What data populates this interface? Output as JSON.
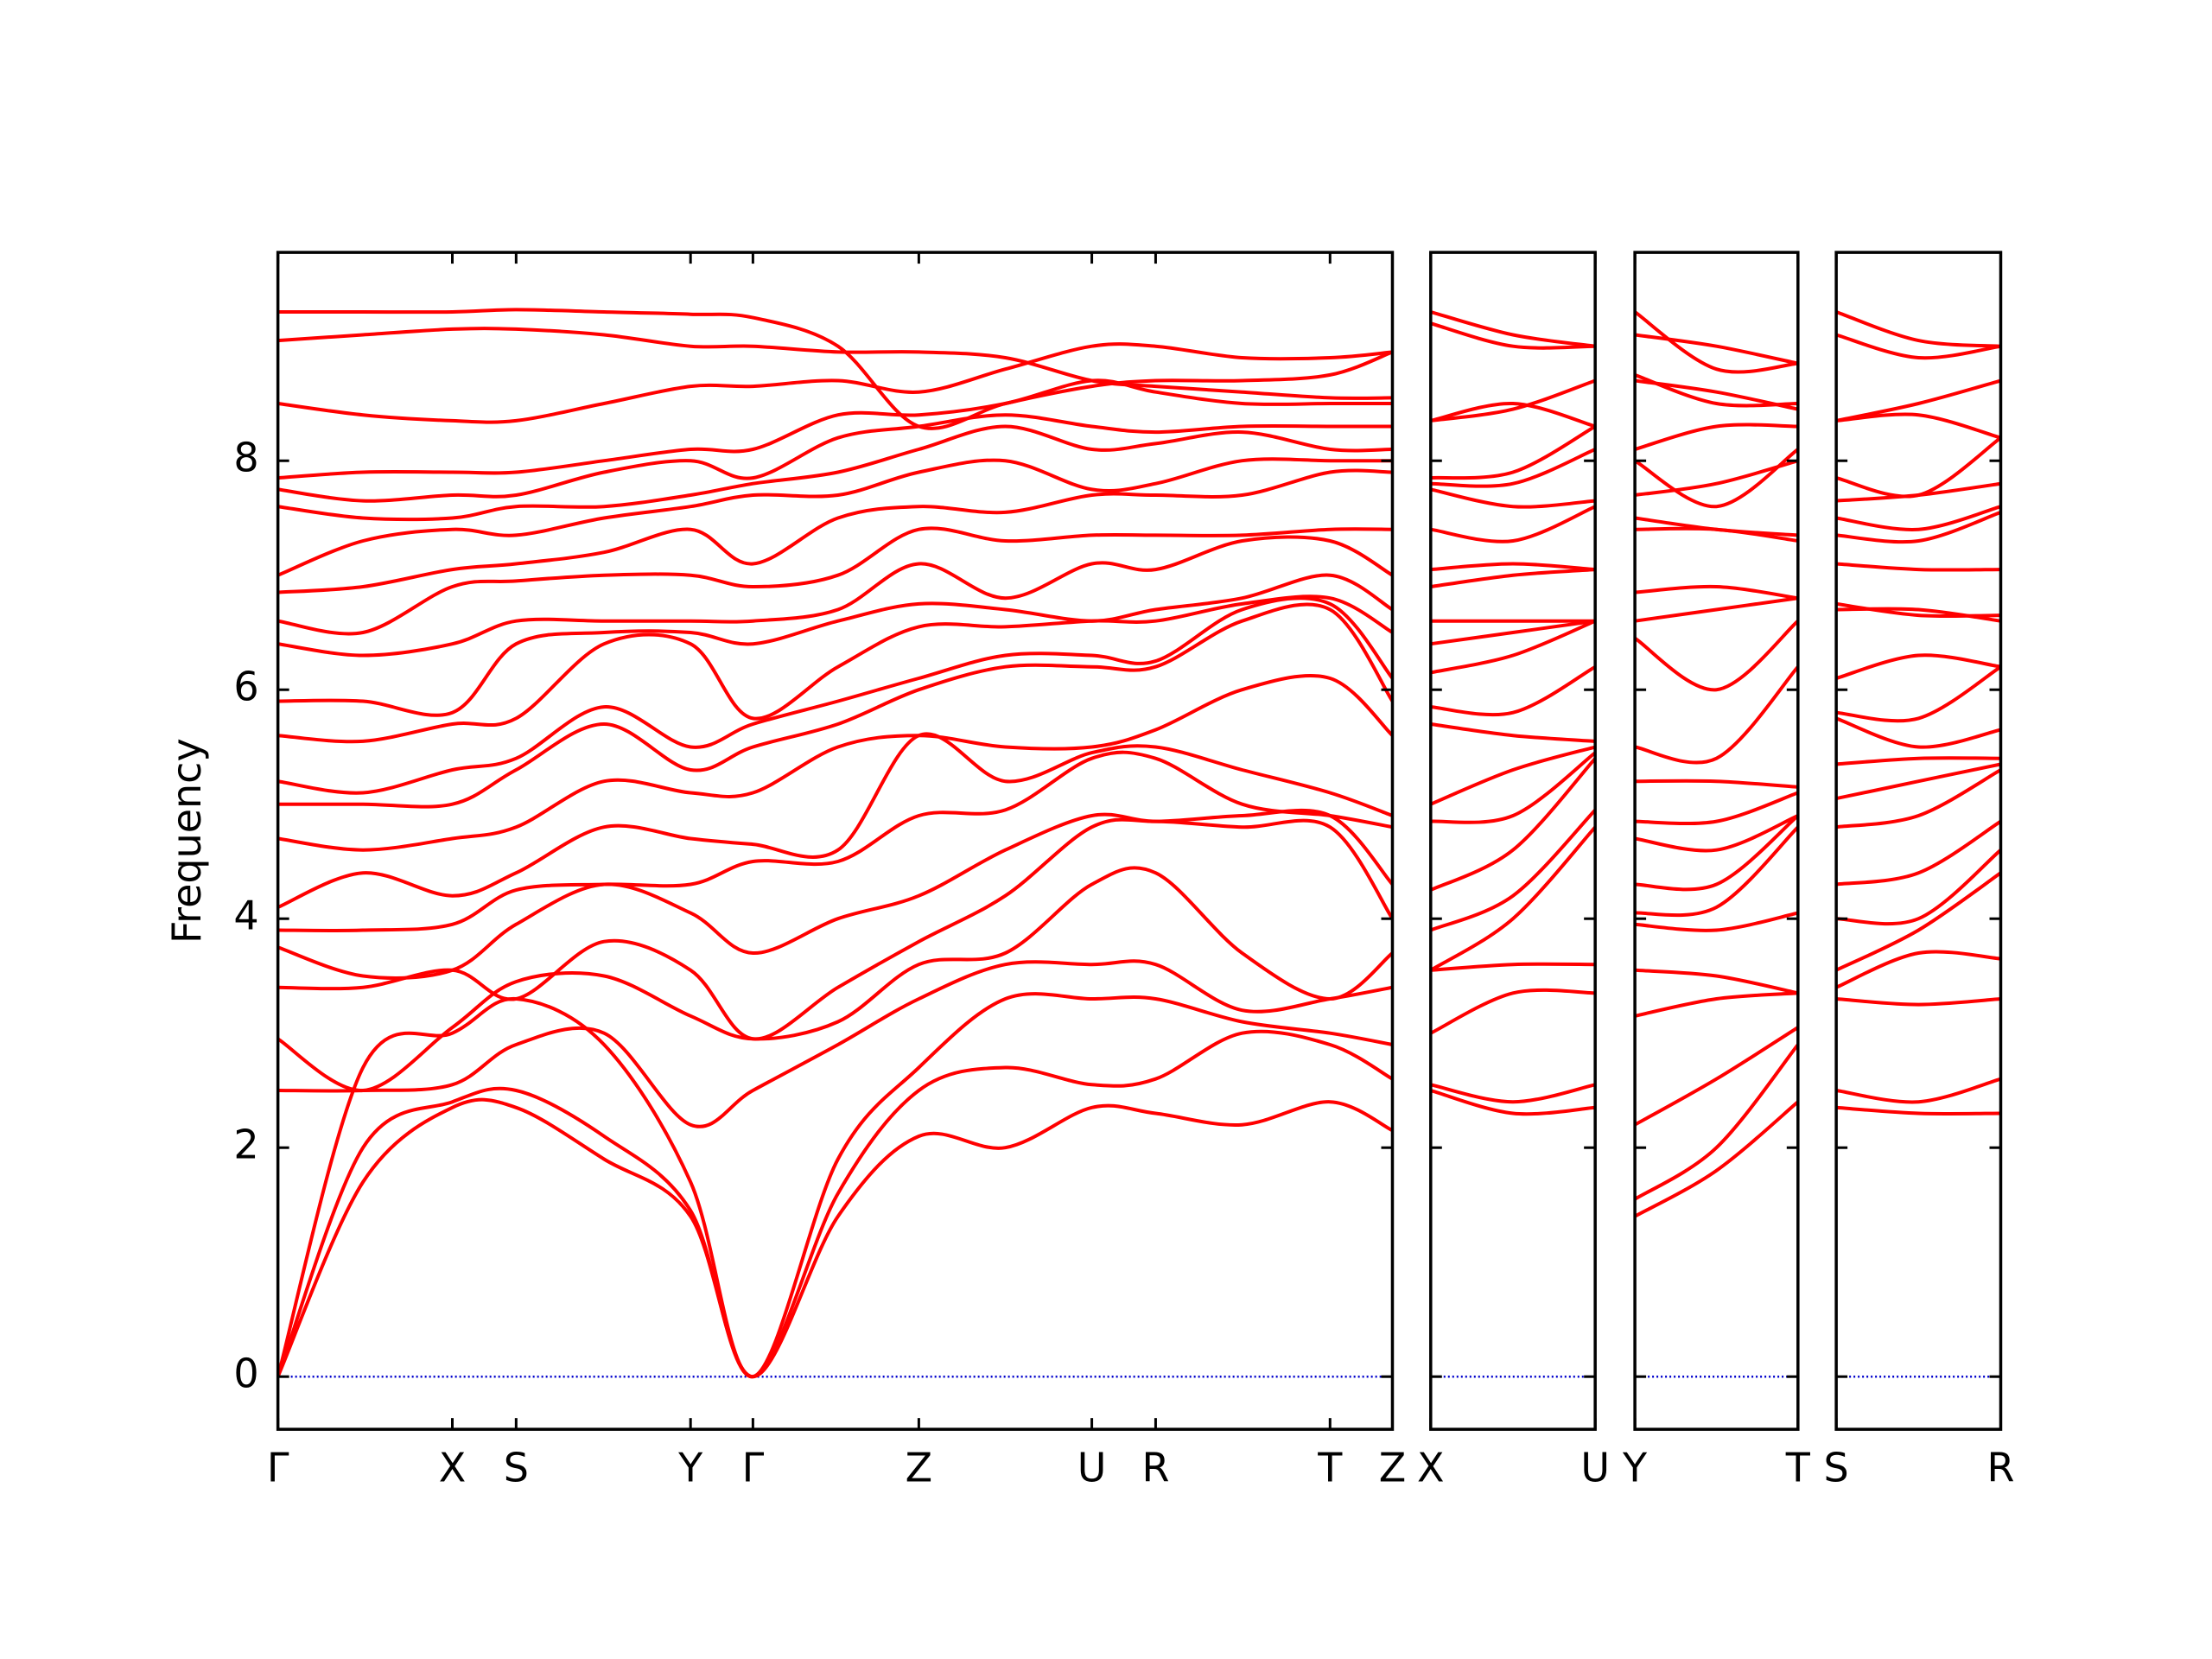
{
  "chart_data": [
    {
      "type": "line",
      "ylabel": "Frequency",
      "color": "#ff0000",
      "hline": 0,
      "hline_color": "#0000cc",
      "xlim": [
        0,
        7.86
      ],
      "xticks": [
        {
          "value": 0,
          "label": "Γ"
        },
        {
          "value": 1.23,
          "label": "X"
        },
        {
          "value": 1.68,
          "label": "S"
        },
        {
          "value": 2.91,
          "label": "Y"
        },
        {
          "value": 3.35,
          "label": "Γ"
        },
        {
          "value": 4.52,
          "label": "Z"
        },
        {
          "value": 5.74,
          "label": "U"
        },
        {
          "value": 6.19,
          "label": "R"
        },
        {
          "value": 7.42,
          "label": "T"
        },
        {
          "value": 7.86,
          "label": "Z"
        }
      ],
      "ylim": [
        -0.46,
        9.82
      ],
      "yticks": [
        0,
        2,
        4,
        6,
        8
      ],
      "show_ytick_labels": true,
      "x": [
        0,
        0.6,
        1.23,
        1.68,
        2.3,
        2.91,
        3.35,
        3.95,
        4.52,
        5.13,
        5.74,
        6.19,
        6.8,
        7.42,
        7.86
      ],
      "series": [
        {
          "values": [
            0,
            1.7,
            2.35,
            2.35,
            1.9,
            1.4,
            0,
            1.4,
            2.1,
            2.0,
            2.35,
            2.3,
            2.2,
            2.4,
            2.15
          ]
        },
        {
          "values": [
            0,
            2.0,
            2.4,
            2.5,
            2.1,
            1.45,
            0,
            1.6,
            2.5,
            2.7,
            2.55,
            2.6,
            3.0,
            2.9,
            2.6
          ]
        },
        {
          "values": [
            0,
            2.7,
            3.0,
            3.3,
            2.9,
            1.7,
            0,
            1.9,
            2.7,
            3.3,
            3.3,
            3.3,
            3.1,
            3.0,
            2.9
          ]
        },
        {
          "values": [
            2.5,
            2.5,
            2.55,
            2.9,
            3.0,
            2.2,
            2.5,
            2.9,
            3.3,
            3.6,
            3.6,
            3.6,
            3.2,
            3.3,
            3.4
          ]
        },
        {
          "values": [
            2.95,
            2.5,
            3.05,
            3.45,
            3.5,
            3.15,
            2.95,
            3.1,
            3.6,
            3.7,
            4.3,
            4.4,
            3.7,
            3.3,
            3.7
          ]
        },
        {
          "values": [
            3.4,
            3.4,
            3.55,
            3.3,
            3.8,
            3.55,
            2.95,
            3.4,
            3.8,
            4.2,
            4.8,
            4.85,
            4.8,
            4.8,
            4.0
          ]
        },
        {
          "values": [
            3.75,
            3.5,
            3.55,
            3.95,
            4.3,
            4.05,
            3.7,
            4.0,
            4.2,
            4.6,
            4.9,
            4.85,
            4.9,
            4.9,
            4.3
          ]
        },
        {
          "values": [
            3.9,
            3.9,
            3.95,
            4.25,
            4.3,
            4.3,
            4.5,
            4.5,
            4.9,
            4.95,
            5.4,
            5.4,
            5.0,
            4.9,
            4.8
          ]
        },
        {
          "values": [
            4.1,
            4.4,
            4.2,
            4.4,
            4.8,
            4.7,
            4.65,
            4.6,
            5.6,
            5.2,
            5.45,
            5.5,
            5.3,
            5.1,
            4.9
          ]
        },
        {
          "values": [
            4.7,
            4.6,
            4.7,
            4.8,
            5.2,
            5.1,
            5.1,
            5.5,
            5.6,
            5.5,
            5.5,
            5.65,
            6.0,
            6.1,
            5.6
          ]
        },
        {
          "values": [
            5.0,
            5.0,
            5.0,
            5.3,
            5.7,
            5.3,
            5.5,
            5.7,
            6.0,
            6.2,
            6.2,
            6.2,
            6.6,
            6.7,
            5.9
          ]
        },
        {
          "values": [
            5.2,
            5.1,
            5.3,
            5.4,
            5.85,
            5.5,
            5.7,
            5.9,
            6.1,
            6.3,
            6.3,
            6.25,
            6.7,
            6.75,
            6.1
          ]
        },
        {
          "values": [
            5.6,
            5.55,
            5.7,
            5.75,
            6.4,
            6.4,
            5.75,
            6.2,
            6.55,
            6.55,
            6.6,
            6.6,
            6.75,
            6.8,
            6.5
          ]
        },
        {
          "values": [
            5.9,
            5.9,
            5.8,
            6.4,
            6.5,
            6.5,
            6.4,
            6.6,
            6.75,
            6.7,
            6.6,
            6.7,
            6.8,
            7.0,
            6.7
          ]
        },
        {
          "values": [
            6.4,
            6.3,
            6.4,
            6.6,
            6.6,
            6.6,
            6.6,
            6.7,
            7.1,
            6.8,
            7.1,
            7.05,
            7.3,
            7.3,
            7.0
          ]
        },
        {
          "values": [
            6.6,
            6.5,
            6.9,
            6.95,
            7.0,
            7.0,
            6.9,
            7.0,
            7.4,
            7.3,
            7.35,
            7.35,
            7.35,
            7.4,
            7.4
          ]
        },
        {
          "values": [
            6.85,
            6.9,
            7.05,
            7.1,
            7.2,
            7.4,
            7.1,
            7.5,
            7.6,
            7.55,
            7.7,
            7.7,
            7.7,
            7.9,
            7.9
          ]
        },
        {
          "values": [
            7.0,
            7.3,
            7.4,
            7.35,
            7.5,
            7.6,
            7.7,
            7.7,
            7.9,
            8.0,
            7.75,
            7.8,
            8.0,
            8.0,
            8.0
          ]
        },
        {
          "values": [
            7.6,
            7.5,
            7.5,
            7.6,
            7.6,
            7.7,
            7.8,
            7.9,
            8.1,
            8.3,
            8.1,
            8.15,
            8.25,
            8.1,
            8.1
          ]
        },
        {
          "values": [
            7.75,
            7.65,
            7.7,
            7.7,
            7.9,
            8.0,
            7.85,
            8.2,
            8.3,
            8.4,
            8.3,
            8.25,
            8.3,
            8.3,
            8.3
          ]
        },
        {
          "values": [
            7.85,
            7.9,
            7.9,
            7.9,
            8.0,
            8.1,
            8.1,
            8.4,
            8.4,
            8.5,
            8.7,
            8.6,
            8.5,
            8.5,
            8.5
          ]
        },
        {
          "values": [
            8.5,
            8.4,
            8.35,
            8.35,
            8.5,
            8.65,
            8.65,
            8.7,
            8.6,
            8.8,
            9.0,
            9.0,
            8.9,
            8.9,
            8.95
          ]
        },
        {
          "values": [
            9.05,
            9.1,
            9.15,
            9.15,
            9.1,
            9.0,
            9.0,
            8.95,
            8.95,
            8.9,
            8.7,
            8.65,
            8.6,
            8.55,
            8.55
          ]
        },
        {
          "values": [
            9.3,
            9.3,
            9.3,
            9.32,
            9.3,
            9.28,
            9.25,
            9.0,
            8.3,
            8.5,
            8.65,
            8.7,
            8.7,
            8.75,
            8.95
          ]
        }
      ]
    },
    {
      "type": "line",
      "color": "#ff0000",
      "hline": 0,
      "hline_color": "#0000cc",
      "xlim": [
        0,
        1.16
      ],
      "xticks": [
        {
          "value": 0,
          "label": "X"
        },
        {
          "value": 1.16,
          "label": "U"
        }
      ],
      "ylim": [
        -0.46,
        9.82
      ],
      "yticks": [
        0,
        2,
        4,
        6,
        8
      ],
      "show_ytick_labels": false,
      "x": [
        0,
        0.58,
        1.16
      ],
      "series": [
        {
          "values": [
            2.5,
            2.3,
            2.35
          ]
        },
        {
          "values": [
            2.55,
            2.4,
            2.55
          ]
        },
        {
          "values": [
            3.0,
            3.35,
            3.35
          ]
        },
        {
          "values": [
            3.55,
            3.6,
            3.6
          ]
        },
        {
          "values": [
            3.55,
            4.0,
            4.8
          ]
        },
        {
          "values": [
            3.9,
            4.2,
            4.95
          ]
        },
        {
          "values": [
            4.25,
            4.6,
            5.4
          ]
        },
        {
          "values": [
            4.85,
            4.9,
            5.45
          ]
        },
        {
          "values": [
            5.0,
            5.3,
            5.5
          ]
        },
        {
          "values": [
            5.7,
            5.6,
            5.55
          ]
        },
        {
          "values": [
            5.85,
            5.8,
            6.2
          ]
        },
        {
          "values": [
            6.15,
            6.3,
            6.6
          ]
        },
        {
          "values": [
            6.4,
            6.5,
            6.6
          ]
        },
        {
          "values": [
            6.6,
            6.6,
            6.6
          ]
        },
        {
          "values": [
            6.9,
            7.0,
            7.05
          ]
        },
        {
          "values": [
            7.05,
            7.1,
            7.05
          ]
        },
        {
          "values": [
            7.4,
            7.3,
            7.6
          ]
        },
        {
          "values": [
            7.75,
            7.6,
            7.65
          ]
        },
        {
          "values": [
            7.8,
            7.8,
            8.1
          ]
        },
        {
          "values": [
            7.85,
            7.9,
            8.3
          ]
        },
        {
          "values": [
            8.35,
            8.5,
            8.3
          ]
        },
        {
          "values": [
            8.35,
            8.45,
            8.7
          ]
        },
        {
          "values": [
            9.2,
            9.0,
            9.0
          ]
        },
        {
          "values": [
            9.3,
            9.1,
            9.0
          ]
        }
      ]
    },
    {
      "type": "line",
      "color": "#ff0000",
      "hline": 0,
      "hline_color": "#0000cc",
      "xlim": [
        0,
        1.16
      ],
      "xticks": [
        {
          "value": 0,
          "label": "Y"
        },
        {
          "value": 1.16,
          "label": "T"
        }
      ],
      "ylim": [
        -0.46,
        9.82
      ],
      "yticks": [
        0,
        2,
        4,
        6,
        8
      ],
      "show_ytick_labels": false,
      "x": [
        0,
        0.58,
        1.16
      ],
      "series": [
        {
          "values": [
            1.4,
            1.8,
            2.4
          ]
        },
        {
          "values": [
            1.55,
            2.0,
            2.9
          ]
        },
        {
          "values": [
            2.2,
            2.6,
            3.05
          ]
        },
        {
          "values": [
            3.15,
            3.3,
            3.35
          ]
        },
        {
          "values": [
            3.55,
            3.5,
            3.35
          ]
        },
        {
          "values": [
            3.95,
            3.9,
            4.05
          ]
        },
        {
          "values": [
            4.05,
            4.1,
            4.8
          ]
        },
        {
          "values": [
            4.3,
            4.3,
            4.9
          ]
        },
        {
          "values": [
            4.7,
            4.6,
            4.9
          ]
        },
        {
          "values": [
            4.85,
            4.85,
            5.1
          ]
        },
        {
          "values": [
            5.2,
            5.2,
            5.15
          ]
        },
        {
          "values": [
            5.5,
            5.4,
            6.2
          ]
        },
        {
          "values": [
            6.45,
            6.0,
            6.6
          ]
        },
        {
          "values": [
            6.6,
            6.7,
            6.8
          ]
        },
        {
          "values": [
            6.85,
            6.9,
            6.8
          ]
        },
        {
          "values": [
            7.4,
            7.4,
            7.3
          ]
        },
        {
          "values": [
            7.5,
            7.4,
            7.35
          ]
        },
        {
          "values": [
            7.7,
            7.8,
            8.0
          ]
        },
        {
          "values": [
            8.0,
            7.6,
            8.1
          ]
        },
        {
          "values": [
            8.1,
            8.3,
            8.3
          ]
        },
        {
          "values": [
            8.7,
            8.6,
            8.45
          ]
        },
        {
          "values": [
            8.75,
            8.5,
            8.5
          ]
        },
        {
          "values": [
            9.1,
            9.0,
            8.85
          ]
        },
        {
          "values": [
            9.3,
            8.8,
            8.85
          ]
        }
      ]
    },
    {
      "type": "line",
      "color": "#ff0000",
      "hline": 0,
      "hline_color": "#0000cc",
      "xlim": [
        0,
        1.16
      ],
      "xticks": [
        {
          "value": 0,
          "label": "S"
        },
        {
          "value": 1.16,
          "label": "R"
        }
      ],
      "ylim": [
        -0.46,
        9.82
      ],
      "yticks": [
        0,
        2,
        4,
        6,
        8
      ],
      "show_ytick_labels": false,
      "x": [
        0,
        0.58,
        1.16
      ],
      "series": [
        {
          "values": [
            2.35,
            2.3,
            2.3
          ]
        },
        {
          "values": [
            2.5,
            2.4,
            2.6
          ]
        },
        {
          "values": [
            3.3,
            3.25,
            3.3
          ]
        },
        {
          "values": [
            3.4,
            3.7,
            3.65
          ]
        },
        {
          "values": [
            3.55,
            3.9,
            4.4
          ]
        },
        {
          "values": [
            4.0,
            4.0,
            4.6
          ]
        },
        {
          "values": [
            4.3,
            4.4,
            4.85
          ]
        },
        {
          "values": [
            4.8,
            4.9,
            5.3
          ]
        },
        {
          "values": [
            5.05,
            5.2,
            5.35
          ]
        },
        {
          "values": [
            5.35,
            5.4,
            5.4
          ]
        },
        {
          "values": [
            5.75,
            5.5,
            5.65
          ]
        },
        {
          "values": [
            5.8,
            5.75,
            6.2
          ]
        },
        {
          "values": [
            6.1,
            6.3,
            6.2
          ]
        },
        {
          "values": [
            6.7,
            6.7,
            6.6
          ]
        },
        {
          "values": [
            6.75,
            6.65,
            6.65
          ]
        },
        {
          "values": [
            7.1,
            7.05,
            7.05
          ]
        },
        {
          "values": [
            7.35,
            7.3,
            7.55
          ]
        },
        {
          "values": [
            7.5,
            7.4,
            7.6
          ]
        },
        {
          "values": [
            7.65,
            7.7,
            7.8
          ]
        },
        {
          "values": [
            7.85,
            7.7,
            8.2
          ]
        },
        {
          "values": [
            8.35,
            8.4,
            8.2
          ]
        },
        {
          "values": [
            8.35,
            8.5,
            8.7
          ]
        },
        {
          "values": [
            9.1,
            8.9,
            9.0
          ]
        },
        {
          "values": [
            9.3,
            9.05,
            9.0
          ]
        }
      ]
    }
  ]
}
